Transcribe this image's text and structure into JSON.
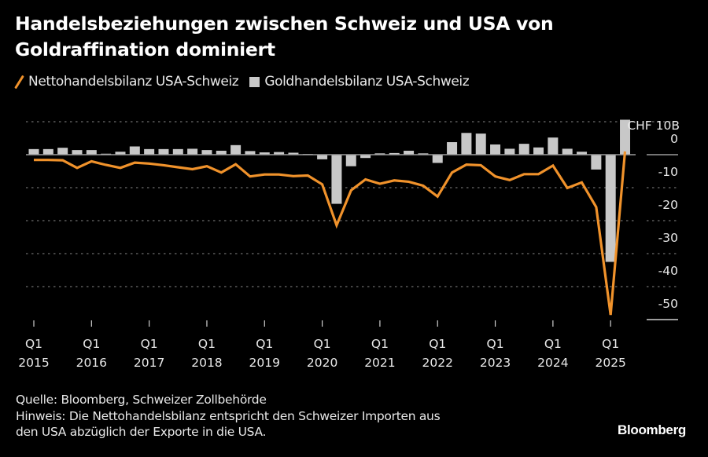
{
  "title": "Handelsbeziehungen zwischen Schweiz und USA von Goldraffination dominiert",
  "legend": {
    "items": [
      {
        "label": "Nettohandelsbilanz USA-Schweiz",
        "icon": "orange-line-icon",
        "color": "#f0922b"
      },
      {
        "label": "Goldhandelsbilanz USA-Schweiz",
        "icon": "gray-square-icon",
        "color": "#c8c8c8"
      }
    ]
  },
  "footer": {
    "source": "Quelle: Bloomberg, Schweizer Zollbehörde",
    "note_line1": "Hinweis: Die Nettohandelsbilanz entspricht den Schweizer Importen aus",
    "note_line2": "den USA abzüglich der Exporte in die USA.",
    "brand": "Bloomberg"
  },
  "chart_data": {
    "type": "bar+line",
    "title": "Handelsbeziehungen zwischen Schweiz und USA von Goldraffination dominiert",
    "unit_label": "CHF 10B",
    "ylim": [
      -50,
      10
    ],
    "yticks": [
      0,
      -10,
      -20,
      -30,
      -40,
      -50
    ],
    "grid": true,
    "y_axis_side": "right",
    "legend_position": "top-left",
    "x_tick_labels": [
      {
        "q": "Q1",
        "year": "2015"
      },
      {
        "q": "Q1",
        "year": "2016"
      },
      {
        "q": "Q1",
        "year": "2017"
      },
      {
        "q": "Q1",
        "year": "2018"
      },
      {
        "q": "Q1",
        "year": "2019"
      },
      {
        "q": "Q1",
        "year": "2020"
      },
      {
        "q": "Q1",
        "year": "2021"
      },
      {
        "q": "Q1",
        "year": "2022"
      },
      {
        "q": "Q1",
        "year": "2023"
      },
      {
        "q": "Q1",
        "year": "2024"
      },
      {
        "q": "Q1",
        "year": "2025"
      }
    ],
    "x": [
      "Q1 2015",
      "Q2 2015",
      "Q3 2015",
      "Q4 2015",
      "Q1 2016",
      "Q2 2016",
      "Q3 2016",
      "Q4 2016",
      "Q1 2017",
      "Q2 2017",
      "Q3 2017",
      "Q4 2017",
      "Q1 2018",
      "Q2 2018",
      "Q3 2018",
      "Q4 2018",
      "Q1 2019",
      "Q2 2019",
      "Q3 2019",
      "Q4 2019",
      "Q1 2020",
      "Q2 2020",
      "Q3 2020",
      "Q4 2020",
      "Q1 2021",
      "Q2 2021",
      "Q3 2021",
      "Q4 2021",
      "Q1 2022",
      "Q2 2022",
      "Q3 2022",
      "Q4 2022",
      "Q1 2023",
      "Q2 2023",
      "Q3 2023",
      "Q4 2023",
      "Q1 2024",
      "Q2 2024",
      "Q3 2024",
      "Q4 2024",
      "Q1 2025",
      "Q2 2025"
    ],
    "series": [
      {
        "name": "Nettohandelsbilanz USA-Schweiz",
        "type": "line",
        "color": "#f0922b",
        "values": [
          -1.6,
          -1.6,
          -1.7,
          -4.0,
          -2.0,
          -3.1,
          -4.0,
          -2.4,
          -2.7,
          -3.2,
          -3.8,
          -4.4,
          -3.5,
          -5.4,
          -2.9,
          -6.6,
          -6.0,
          -6.0,
          -6.5,
          -6.3,
          -9.0,
          -21.4,
          -10.8,
          -7.5,
          -8.8,
          -7.8,
          -8.2,
          -9.4,
          -12.7,
          -5.4,
          -3.0,
          -3.2,
          -6.6,
          -7.7,
          -5.9,
          -5.9,
          -3.3,
          -10.1,
          -8.4,
          -15.9,
          -48.6,
          1.0
        ]
      },
      {
        "name": "Goldhandelsbilanz USA-Schweiz",
        "type": "bar",
        "color": "#c8c8c8",
        "values": [
          1.7,
          1.7,
          2.1,
          1.4,
          1.4,
          0.3,
          0.9,
          2.5,
          1.7,
          1.7,
          1.7,
          1.8,
          1.4,
          1.2,
          2.9,
          1.1,
          0.7,
          0.8,
          0.6,
          0.2,
          -1.4,
          -14.9,
          -3.5,
          -1.0,
          0.4,
          0.5,
          1.2,
          0.4,
          -2.5,
          3.8,
          6.6,
          6.4,
          3.1,
          1.8,
          3.3,
          2.2,
          5.2,
          1.8,
          0.9,
          -4.5,
          -32.5,
          10.6
        ]
      }
    ]
  }
}
